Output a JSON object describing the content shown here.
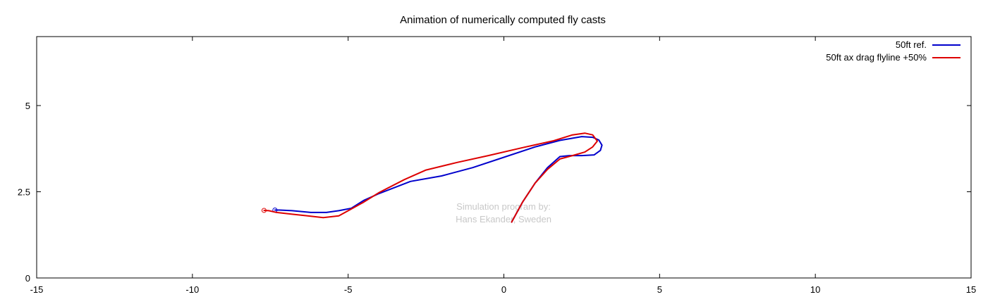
{
  "chart_data": {
    "type": "line",
    "title": "Animation of numerically computed fly casts",
    "xlabel": "",
    "ylabel": "",
    "xlim": [
      -15,
      15
    ],
    "ylim": [
      0,
      7
    ],
    "x_ticks": [
      -15,
      -10,
      -5,
      0,
      5,
      10,
      15
    ],
    "y_ticks": [
      0,
      2.5,
      5
    ],
    "y_tick_labels": [
      "0",
      "2.5",
      "5"
    ],
    "grid": false,
    "legend_position": "top-right",
    "annotation": {
      "line1": "Simulation program by:",
      "line2": "Hans Ekander, Sweden"
    },
    "series": [
      {
        "name": "50ft ref.",
        "color": "#0000cc",
        "points": [
          [
            0.25,
            1.62
          ],
          [
            0.6,
            2.2
          ],
          [
            1.0,
            2.75
          ],
          [
            1.4,
            3.2
          ],
          [
            1.8,
            3.52
          ],
          [
            2.1,
            3.55
          ],
          [
            2.5,
            3.55
          ],
          [
            2.9,
            3.57
          ],
          [
            3.1,
            3.7
          ],
          [
            3.15,
            3.85
          ],
          [
            3.05,
            4.0
          ],
          [
            2.85,
            4.08
          ],
          [
            2.5,
            4.1
          ],
          [
            1.8,
            3.99
          ],
          [
            1.0,
            3.8
          ],
          [
            0.0,
            3.5
          ],
          [
            -1.0,
            3.2
          ],
          [
            -2.0,
            2.96
          ],
          [
            -3.0,
            2.8
          ],
          [
            -4.0,
            2.45
          ],
          [
            -4.5,
            2.25
          ],
          [
            -4.9,
            2.02
          ],
          [
            -5.3,
            1.95
          ],
          [
            -5.7,
            1.9
          ],
          [
            -6.2,
            1.9
          ],
          [
            -6.8,
            1.95
          ],
          [
            -7.2,
            1.97
          ],
          [
            -7.35,
            1.97
          ]
        ],
        "end_marker": [
          -7.35,
          1.97
        ]
      },
      {
        "name": "50ft ax drag flyline +50%",
        "color": "#dd0000",
        "points": [
          [
            0.25,
            1.62
          ],
          [
            0.6,
            2.2
          ],
          [
            1.0,
            2.75
          ],
          [
            1.4,
            3.15
          ],
          [
            1.8,
            3.45
          ],
          [
            2.2,
            3.55
          ],
          [
            2.6,
            3.65
          ],
          [
            2.85,
            3.8
          ],
          [
            3.0,
            3.97
          ],
          [
            2.85,
            4.15
          ],
          [
            2.6,
            4.2
          ],
          [
            2.2,
            4.15
          ],
          [
            1.6,
            3.98
          ],
          [
            0.6,
            3.78
          ],
          [
            -0.5,
            3.55
          ],
          [
            -1.5,
            3.35
          ],
          [
            -2.5,
            3.13
          ],
          [
            -3.2,
            2.85
          ],
          [
            -4.0,
            2.48
          ],
          [
            -4.5,
            2.2
          ],
          [
            -4.9,
            2.0
          ],
          [
            -5.3,
            1.8
          ],
          [
            -5.8,
            1.75
          ],
          [
            -6.3,
            1.8
          ],
          [
            -6.8,
            1.85
          ],
          [
            -7.3,
            1.9
          ],
          [
            -7.55,
            1.95
          ],
          [
            -7.7,
            1.96
          ]
        ],
        "end_marker": [
          -7.7,
          1.96
        ]
      }
    ]
  }
}
